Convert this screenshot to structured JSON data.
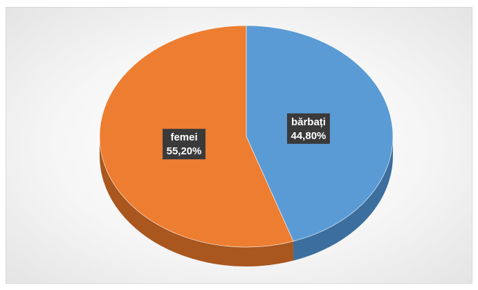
{
  "chart_data": {
    "type": "pie",
    "style": "3d",
    "slices": [
      {
        "label": "bărbați",
        "value": 44.8,
        "display": "44,80%",
        "color": "#5b9bd5",
        "side_color": "#3c6e9e"
      },
      {
        "label": "femei",
        "value": 55.2,
        "display": "55,20%",
        "color": "#ed7d31",
        "side_color": "#a9561f"
      }
    ],
    "data_label_background": "#3a3a3a",
    "legend": "none"
  }
}
